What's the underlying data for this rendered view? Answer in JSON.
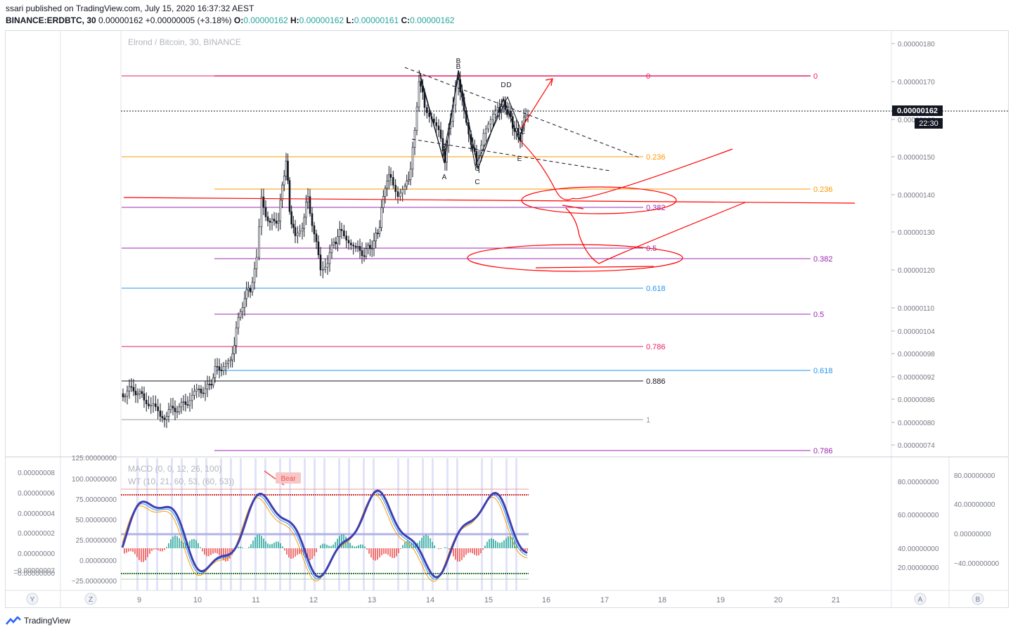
{
  "header": {
    "published": "ssari published on TradingView.com, July 15, 2020 16:37:32 AEST",
    "symbol": "BINANCE:ERDBTC, 30",
    "price": "0.00000162",
    "change": "+0.00000005 (+3.18%)",
    "o_label": "O:",
    "o": "0.00000162",
    "h_label": "H:",
    "h": "0.00000162",
    "l_label": "L:",
    "l": "0.00000161",
    "c_label": "C:",
    "c": "0.00000162"
  },
  "chart_title": "Elrond / Bitcoin, 30, BINANCE",
  "price_axis": [
    "0.00000180",
    "0.00000170",
    "0.00000160",
    "0.00000150",
    "0.00000140",
    "0.00000130",
    "0.00000120",
    "0.00000110",
    "0.00000104",
    "0.00000098",
    "0.00000092",
    "0.00000086",
    "0.00000080",
    "0.00000074"
  ],
  "last_price_tag": "0.00000162",
  "countdown_tag": "22:30",
  "time_axis": [
    "9",
    "10",
    "11",
    "12",
    "13",
    "14",
    "15",
    "16",
    "17",
    "18",
    "19",
    "20",
    "21"
  ],
  "fib_labels_a": [
    "0",
    "0.236",
    "0.382",
    "0.5",
    "0.618",
    "0.786",
    "0.886",
    "1"
  ],
  "fib_labels_b": [
    "0",
    "0.236",
    "0.382",
    "0.5",
    "0.618",
    "0.786"
  ],
  "pattern_labels": [
    "B",
    "B",
    "A",
    "A",
    "C",
    "C",
    "D",
    "D",
    "E",
    "E"
  ],
  "indicator": {
    "macd_label": "MACD (0, 0, 12, 26, 100)",
    "wt_label": "WT (10, 21, 60, 53, (60, 53))",
    "bear_label": "Bear",
    "left_axis_a": [
      "0.00000008",
      "0.00000006",
      "0.00000004",
      "0.00000002",
      "0.00000000",
      "−0.00000000",
      "−0.00000002"
    ],
    "left_axis_b": [
      "125.00000000",
      "100.00000000",
      "75.00000000",
      "50.00000000",
      "25.00000000",
      "0.00000000",
      "−25.00000000"
    ],
    "right_axis_a": [
      "80.00000000",
      "60.00000000",
      "40.00000000",
      "20.00000000"
    ],
    "right_axis_b": [
      "80.00000000",
      "40.00000000",
      "0.00000000",
      "−40.00000000"
    ]
  },
  "corner_buttons": [
    "Y",
    "Z",
    "A",
    "B"
  ],
  "footer": {
    "brand": "TradingView"
  },
  "colors": {
    "up": "#26a69a",
    "down": "#ef5350",
    "wt1": "#3f3fb0",
    "fibRed": "#e91e63",
    "fibOrange": "#ff9800",
    "fibPurple": "#9c27b0",
    "fibBlue": "#2196f3",
    "annot": "#ff0000"
  }
}
